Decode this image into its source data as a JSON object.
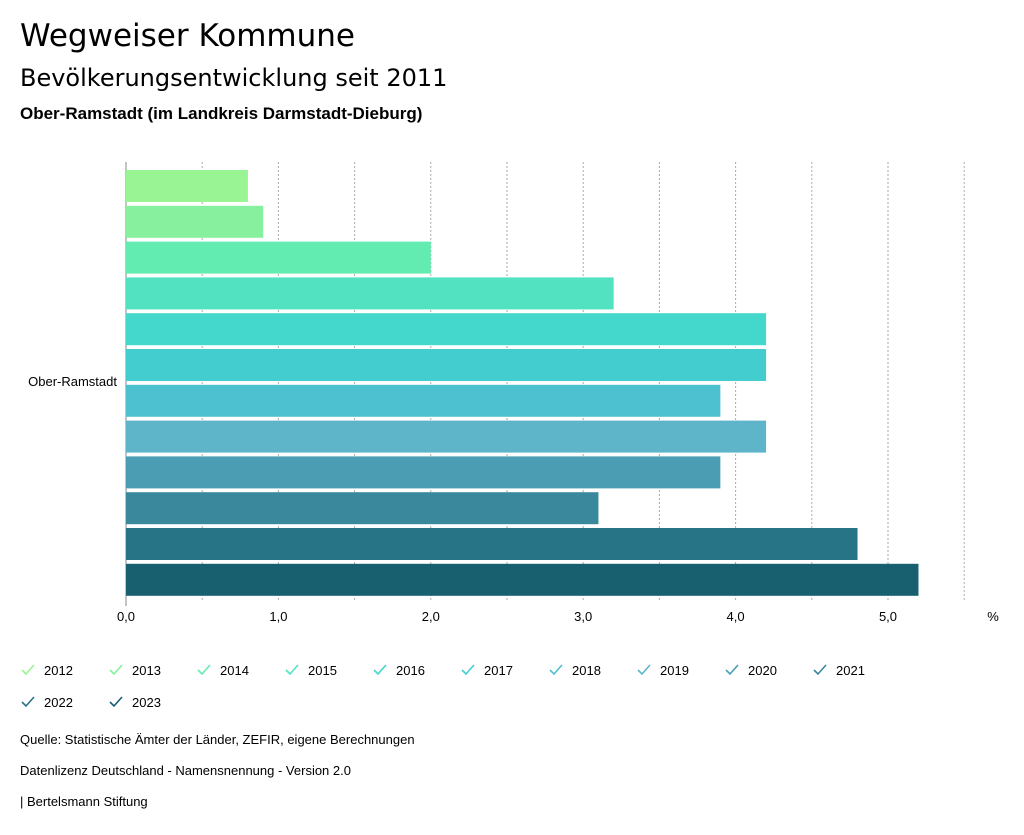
{
  "header": {
    "title": "Wegweiser Kommune",
    "subtitle": "Bevölkerungsentwicklung seit 2011",
    "region": "Ober-Ramstadt (im Landkreis Darmstadt-Dieburg)"
  },
  "chart_data": {
    "type": "bar",
    "orientation": "horizontal",
    "categories": [
      "Ober-Ramstadt"
    ],
    "series": [
      {
        "name": "2012",
        "values": [
          0.8
        ],
        "color": "#99f493"
      },
      {
        "name": "2013",
        "values": [
          0.9
        ],
        "color": "#86f09e"
      },
      {
        "name": "2014",
        "values": [
          2.0
        ],
        "color": "#63ecb1"
      },
      {
        "name": "2015",
        "values": [
          3.2
        ],
        "color": "#52e2c1"
      },
      {
        "name": "2016",
        "values": [
          4.2
        ],
        "color": "#43d8cb"
      },
      {
        "name": "2017",
        "values": [
          4.2
        ],
        "color": "#43cdcf"
      },
      {
        "name": "2018",
        "values": [
          3.9
        ],
        "color": "#4ec1d0"
      },
      {
        "name": "2019",
        "values": [
          4.2
        ],
        "color": "#5eb5c9"
      },
      {
        "name": "2020",
        "values": [
          3.9
        ],
        "color": "#4b9db3"
      },
      {
        "name": "2021",
        "values": [
          3.1
        ],
        "color": "#3a889c"
      },
      {
        "name": "2022",
        "values": [
          4.8
        ],
        "color": "#287487"
      },
      {
        "name": "2023",
        "values": [
          5.2
        ],
        "color": "#185f70"
      }
    ],
    "xticks": [
      "0,0",
      "1,0",
      "2,0",
      "3,0",
      "4,0",
      "5,0"
    ],
    "xtick_values": [
      0,
      1,
      2,
      3,
      4,
      5
    ],
    "xlim": [
      0,
      5.6
    ],
    "unit_label": "%",
    "grid": true
  },
  "footer": {
    "source": "Quelle: Statistische Ämter der Länder, ZEFIR, eigene Berechnungen",
    "license": "Datenlizenz Deutschland - Namensnennung - Version 2.0",
    "publisher": "| Bertelsmann Stiftung"
  }
}
